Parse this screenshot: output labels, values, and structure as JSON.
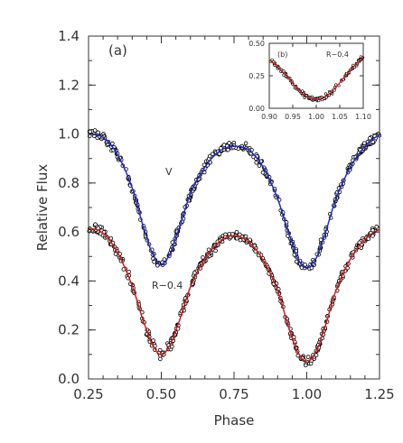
{
  "colors": {
    "axis": "#333333",
    "v_fit": "#1f2ccc",
    "r_fit": "#dd1a1a",
    "points": "#000000",
    "point_fill": "#ffffff"
  },
  "chart_data": [
    {
      "panel": "main",
      "type": "scatter",
      "panel_label": "(a)",
      "xlabel": "Phase",
      "ylabel": "Relative Flux",
      "xlim": [
        0.25,
        1.25
      ],
      "ylim": [
        0.0,
        1.4
      ],
      "xticks": [
        0.25,
        0.5,
        0.75,
        1.0,
        1.25
      ],
      "xtick_labels": [
        "0.25",
        "0.50",
        "0.75",
        "1.00",
        "1.25"
      ],
      "yticks": [
        0.0,
        0.2,
        0.4,
        0.6,
        0.8,
        1.0,
        1.2,
        1.4
      ],
      "ytick_labels": [
        "0.0",
        "0.2",
        "0.4",
        "0.6",
        "0.8",
        "1.0",
        "1.2",
        "1.4"
      ],
      "grid": false,
      "series": [
        {
          "name": "V",
          "fit_color": "v_fit",
          "x": [
            0.25,
            0.3,
            0.35,
            0.4,
            0.45,
            0.48,
            0.5,
            0.52,
            0.55,
            0.6,
            0.65,
            0.7,
            0.75,
            0.8,
            0.85,
            0.9,
            0.95,
            0.98,
            1.0,
            1.02,
            1.05,
            1.1,
            1.15,
            1.2,
            1.25
          ],
          "y": [
            1.0,
            0.985,
            0.915,
            0.78,
            0.58,
            0.49,
            0.465,
            0.49,
            0.58,
            0.755,
            0.865,
            0.93,
            0.95,
            0.935,
            0.865,
            0.735,
            0.555,
            0.47,
            0.455,
            0.47,
            0.55,
            0.735,
            0.865,
            0.95,
            0.995
          ]
        },
        {
          "name": "R−0.4",
          "fit_color": "r_fit",
          "x": [
            0.25,
            0.3,
            0.35,
            0.4,
            0.45,
            0.48,
            0.5,
            0.52,
            0.55,
            0.6,
            0.65,
            0.7,
            0.75,
            0.8,
            0.85,
            0.9,
            0.95,
            0.98,
            1.0,
            1.02,
            1.05,
            1.1,
            1.15,
            1.2,
            1.25
          ],
          "y": [
            0.615,
            0.595,
            0.515,
            0.38,
            0.2,
            0.12,
            0.1,
            0.12,
            0.2,
            0.375,
            0.49,
            0.56,
            0.585,
            0.56,
            0.485,
            0.36,
            0.17,
            0.09,
            0.075,
            0.09,
            0.17,
            0.36,
            0.49,
            0.57,
            0.61
          ]
        }
      ]
    },
    {
      "panel": "inset",
      "type": "scatter",
      "panel_label": "(b)",
      "series_label": "R−0.4",
      "xlim": [
        0.9,
        1.1
      ],
      "ylim": [
        0.0,
        0.5
      ],
      "xticks": [
        0.9,
        0.95,
        1.0,
        1.05,
        1.1
      ],
      "xtick_labels": [
        "0.90",
        "0.95",
        "1.00",
        "1.05",
        "1.10"
      ],
      "yticks": [
        0.0,
        0.25,
        0.5
      ],
      "ytick_labels": [
        "0.00",
        "0.25",
        "0.50"
      ],
      "series": [
        {
          "name": "R−0.4",
          "fit_color": "r_fit",
          "x": [
            0.9,
            0.92,
            0.94,
            0.96,
            0.98,
            0.99,
            1.0,
            1.01,
            1.02,
            1.04,
            1.06,
            1.08,
            1.1
          ],
          "y": [
            0.37,
            0.31,
            0.235,
            0.15,
            0.09,
            0.075,
            0.07,
            0.075,
            0.09,
            0.155,
            0.24,
            0.32,
            0.39
          ]
        }
      ]
    }
  ]
}
